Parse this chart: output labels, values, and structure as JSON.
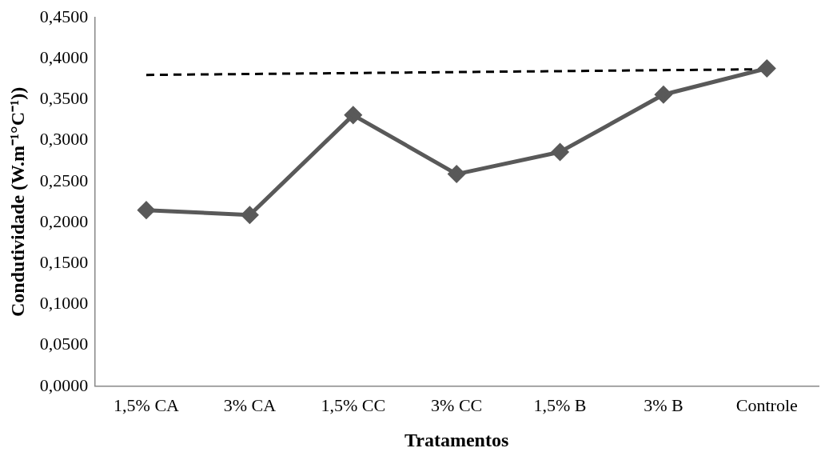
{
  "chart_data": {
    "type": "line",
    "xlabel": "Tratamentos",
    "ylabel": "Condutividade (W.m⁻¹°C⁻¹))",
    "categories": [
      "1,5% CA",
      "3% CA",
      "1,5% CC",
      "3% CC",
      "1,5% B",
      "3% B",
      "Controle"
    ],
    "series": [
      {
        "color": "#595959",
        "values": [
          0.215,
          0.209,
          0.331,
          0.259,
          0.286,
          0.356,
          0.388
        ],
        "marker": "diamond"
      },
      {
        "color": "#000000",
        "values": [
          0.38,
          null,
          null,
          null,
          null,
          null,
          0.387
        ],
        "marker": "none",
        "line_style": "dashed"
      }
    ],
    "ylim": [
      0,
      0.45
    ],
    "yticks": [
      {
        "value": 0,
        "label": "0,0000"
      },
      {
        "value": 0.05,
        "label": "0,0500"
      },
      {
        "value": 0.1,
        "label": "0,1000"
      },
      {
        "value": 0.15,
        "label": "0,1500"
      },
      {
        "value": 0.2,
        "label": "0,2000"
      },
      {
        "value": 0.25,
        "label": "0,2500"
      },
      {
        "value": 0.3,
        "label": "0,3000"
      },
      {
        "value": 0.35,
        "label": "0,3500"
      },
      {
        "value": 0.4,
        "label": "0,4000"
      },
      {
        "value": 0.45,
        "label": "0,4500"
      }
    ],
    "grid": false,
    "legend": false
  }
}
